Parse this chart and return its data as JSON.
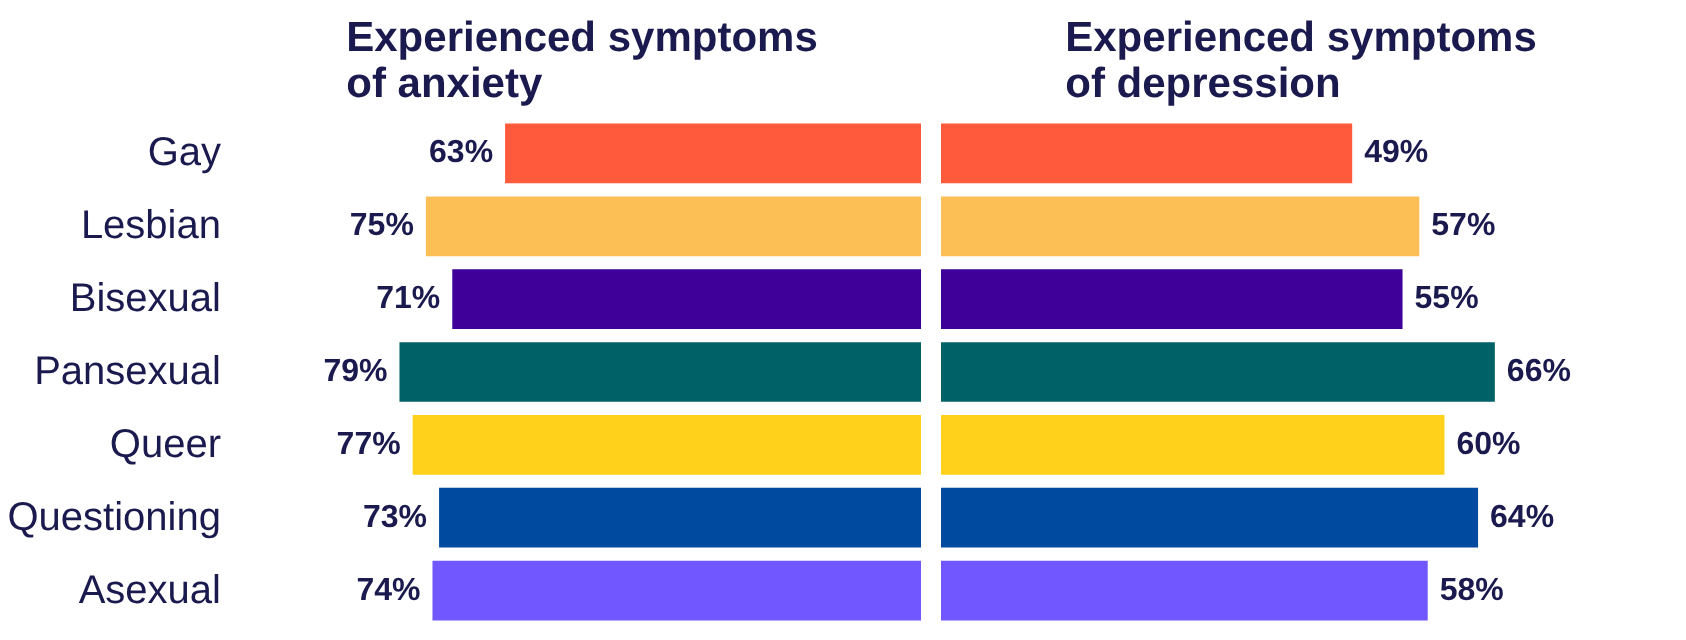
{
  "chart_data": [
    {
      "type": "bar",
      "orientation": "horizontal",
      "title": "Experienced symptoms of anxiety",
      "categories": [
        "Gay",
        "Lesbian",
        "Bisexual",
        "Pansexual",
        "Queer",
        "Questioning",
        "Asexual"
      ],
      "values": [
        63,
        75,
        71,
        79,
        77,
        73,
        74
      ],
      "colors": [
        "#ff5a3c",
        "#fbbf55",
        "#3f0099",
        "#006266",
        "#ffd11a",
        "#004a9f",
        "#7057ff"
      ],
      "value_labels": [
        "63%",
        "75%",
        "71%",
        "79%",
        "77%",
        "73%",
        "74%"
      ],
      "tick_labels": "y",
      "grid": false
    },
    {
      "type": "bar",
      "orientation": "horizontal",
      "title": "Experienced symptoms of depression",
      "categories": [
        null,
        null,
        null,
        null,
        null,
        null,
        null
      ],
      "values": [
        49,
        57,
        55,
        66,
        60,
        64,
        58
      ],
      "colors": [
        "#ff5a3c",
        "#fbbf55",
        "#3f0099",
        "#006266",
        "#ffd11a",
        "#004a9f",
        "#7057ff"
      ],
      "value_labels": [
        "49%",
        "57%",
        "55%",
        "66%",
        "60%",
        "64%",
        "58%"
      ],
      "tick_labels": false,
      "grid": false
    }
  ]
}
